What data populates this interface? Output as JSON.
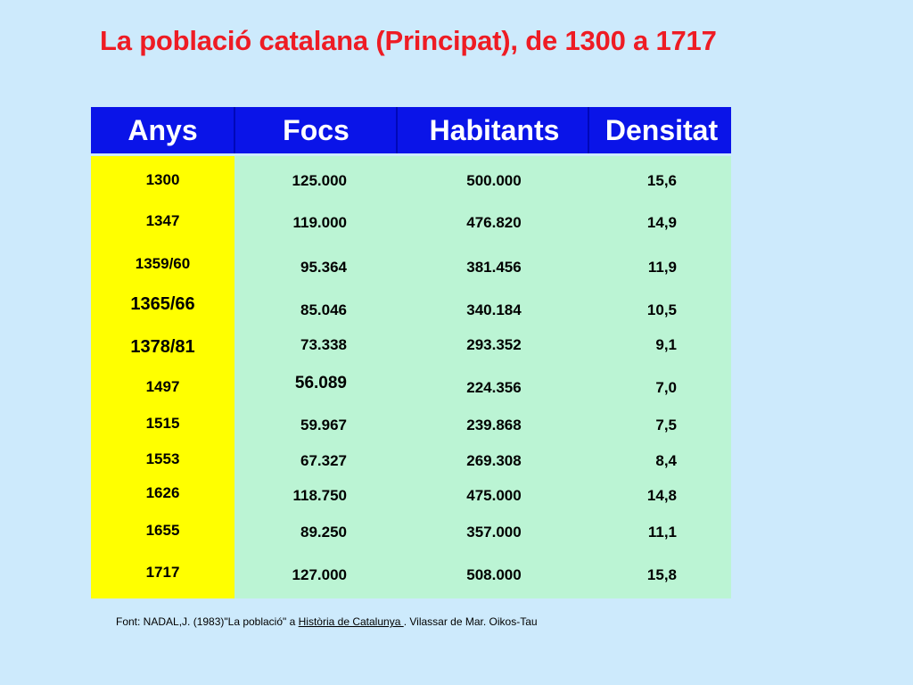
{
  "title": "La població catalana (Principat), de 1300 a 1717",
  "columns": [
    "Anys",
    "Focs",
    "Habitants",
    "Densitat"
  ],
  "rows": [
    {
      "year": "1300",
      "focs": "125.000",
      "habitants": "500.000",
      "densitat": "15,6"
    },
    {
      "year": "1347",
      "focs": "119.000",
      "habitants": "476.820",
      "densitat": "14,9"
    },
    {
      "year": "1359/60",
      "focs": "95.364",
      "habitants": "381.456",
      "densitat": "11,9"
    },
    {
      "year": "1365/66",
      "focs": "85.046",
      "habitants": "340.184",
      "densitat": "10,5"
    },
    {
      "year": "1378/81",
      "focs": "73.338",
      "habitants": "293.352",
      "densitat": "9,1"
    },
    {
      "year": "1497",
      "focs": "56.089",
      "habitants": "224.356",
      "densitat": "7,0"
    },
    {
      "year": "1515",
      "focs": "59.967",
      "habitants": "239.868",
      "densitat": "7,5"
    },
    {
      "year": "1553",
      "focs": "67.327",
      "habitants": "269.308",
      "densitat": "8,4"
    },
    {
      "year": "1626",
      "focs": "118.750",
      "habitants": "475.000",
      "densitat": "14,8"
    },
    {
      "year": "1655",
      "focs": "89.250",
      "habitants": "357.000",
      "densitat": "11,1"
    },
    {
      "year": "1717",
      "focs": "127.000",
      "habitants": "508.000",
      "densitat": "15,8"
    }
  ],
  "source": {
    "prefix": "Font: NADAL,J. (1983)\"La població\" a ",
    "reference": "Història de Catalunya ",
    "suffix": ". Vilassar de Mar. Oikos-Tau"
  },
  "colors": {
    "title": "#ee1c24",
    "background": "#cdeafc",
    "header": "#0a14e8",
    "year_column": "#ffff00",
    "data_area": "#bbf4d4"
  }
}
